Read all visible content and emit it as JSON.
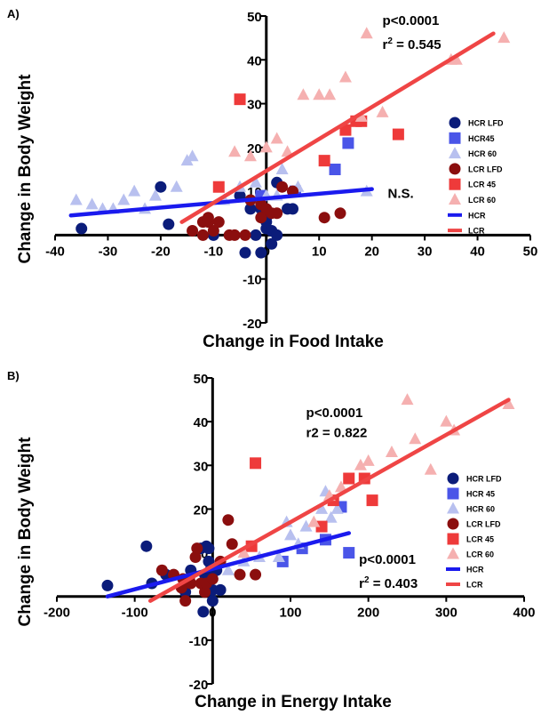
{
  "chart_data": [
    {
      "type": "scatter",
      "panel": "A)",
      "xlabel": "Change in Food  Intake",
      "ylabel": "Change in Body Weight",
      "xlim": [
        -40,
        50
      ],
      "ylim": [
        -20,
        50
      ],
      "x_ticks": [
        "-40",
        "-30",
        "-20",
        "-10",
        "0",
        "10",
        "20",
        "30",
        "40",
        "50"
      ],
      "y_ticks": [
        "-20",
        "-10",
        "0",
        "10",
        "20",
        "30",
        "40",
        "50"
      ],
      "annotations": [
        {
          "text": "p<0.0001",
          "x": 22,
          "y": 48
        },
        {
          "text": "r",
          "sup": "2",
          "rest": " = 0.545",
          "x": 22,
          "y": 42.5
        },
        {
          "text": "N.S.",
          "x": 23,
          "y": 8.5
        }
      ],
      "series": [
        {
          "name": "HCR LFD",
          "marker": "circle",
          "color": "#0b1c7a",
          "points": [
            [
              -35,
              1.5
            ],
            [
              -20,
              11
            ],
            [
              -18.5,
              2.5
            ],
            [
              -10,
              0
            ],
            [
              -5,
              9
            ],
            [
              -3,
              6
            ],
            [
              -2,
              0
            ],
            [
              -1,
              6
            ],
            [
              0,
              3
            ],
            [
              0,
              1.5
            ],
            [
              0,
              4
            ],
            [
              1,
              -2
            ],
            [
              1,
              1
            ],
            [
              2,
              12
            ],
            [
              2,
              0
            ],
            [
              4,
              6
            ],
            [
              5,
              6
            ],
            [
              -1,
              -4
            ],
            [
              -4,
              -4
            ]
          ]
        },
        {
          "name": "HCR45",
          "marker": "square",
          "color": "#4a55e8",
          "points": [
            [
              -1,
              9
            ],
            [
              5.5,
              10
            ],
            [
              13,
              15
            ],
            [
              15.5,
              21
            ]
          ]
        },
        {
          "name": "HCR 60",
          "marker": "triangle",
          "color": "#b8c0ef",
          "points": [
            [
              -36,
              8
            ],
            [
              -33,
              7
            ],
            [
              -31,
              6
            ],
            [
              -29,
              6
            ],
            [
              -27,
              8
            ],
            [
              -25,
              10
            ],
            [
              -23,
              6
            ],
            [
              -21,
              9
            ],
            [
              -17,
              11
            ],
            [
              -15,
              17
            ],
            [
              -14,
              18
            ],
            [
              -8,
              8
            ],
            [
              -5,
              11
            ],
            [
              -2,
              12
            ],
            [
              0,
              9
            ],
            [
              2,
              9
            ],
            [
              3,
              15
            ],
            [
              6,
              11
            ],
            [
              19,
              10
            ]
          ]
        },
        {
          "name": "LCR LFD",
          "marker": "circle",
          "color": "#8b0e0e",
          "points": [
            [
              -14,
              1
            ],
            [
              -12,
              3
            ],
            [
              -12,
              0
            ],
            [
              -11,
              3
            ],
            [
              -10,
              1
            ],
            [
              -9,
              3
            ],
            [
              -7,
              0
            ],
            [
              -6,
              0
            ],
            [
              -4,
              0
            ],
            [
              -3,
              8
            ],
            [
              -1,
              4
            ],
            [
              -1,
              7
            ],
            [
              0,
              6
            ],
            [
              1,
              5
            ],
            [
              2,
              5
            ],
            [
              3,
              11
            ],
            [
              5,
              10
            ],
            [
              11,
              4
            ],
            [
              14,
              5
            ],
            [
              -11,
              4
            ]
          ]
        },
        {
          "name": "LCR 45",
          "marker": "square",
          "color": "#ee3a3a",
          "points": [
            [
              -9,
              11
            ],
            [
              -5,
              31
            ],
            [
              11,
              17
            ],
            [
              15,
              24
            ],
            [
              17,
              26
            ],
            [
              18,
              26
            ],
            [
              25,
              23
            ]
          ]
        },
        {
          "name": "LCR 60",
          "marker": "triangle",
          "color": "#f5b0b0",
          "points": [
            [
              -6,
              19
            ],
            [
              -3,
              18
            ],
            [
              0,
              20
            ],
            [
              2,
              22
            ],
            [
              4,
              19
            ],
            [
              7,
              32
            ],
            [
              10,
              32
            ],
            [
              12,
              32
            ],
            [
              15,
              36
            ],
            [
              18,
              27
            ],
            [
              22,
              28
            ],
            [
              35,
              40
            ],
            [
              36,
              40
            ],
            [
              45,
              45
            ],
            [
              19,
              46
            ]
          ]
        }
      ],
      "fit_lines": [
        {
          "name": "HCR",
          "color": "#1a1aee",
          "x": [
            -37,
            20
          ],
          "y": [
            4.5,
            10.5
          ]
        },
        {
          "name": "LCR",
          "color": "#ef4545",
          "x": [
            -16,
            43
          ],
          "y": [
            3,
            46
          ]
        }
      ],
      "legend": {
        "position": "right"
      }
    },
    {
      "type": "scatter",
      "panel": "B)",
      "xlabel": "Change in Energy Intake",
      "ylabel": "Change in Body Weight",
      "xlim": [
        -200,
        400
      ],
      "ylim": [
        -20,
        50
      ],
      "x_ticks": [
        "-200",
        "-100",
        "0",
        "100",
        "200",
        "300",
        "400"
      ],
      "y_ticks": [
        "-20",
        "-10",
        "0",
        "10",
        "20",
        "30",
        "40",
        "50"
      ],
      "annotations": [
        {
          "text": "p<0.0001",
          "x": 120,
          "y": 41
        },
        {
          "text": "r2 = 0.822",
          "x": 120,
          "y": 36.5
        },
        {
          "text": "p<0.0001",
          "x": 188,
          "y": 7.5
        },
        {
          "text": "r",
          "sup": "2",
          "rest": " = 0.403",
          "x": 188,
          "y": 2
        }
      ],
      "series": [
        {
          "name": "HCR LFD",
          "marker": "circle",
          "color": "#0b1c7a",
          "points": [
            [
              -135,
              2.5
            ],
            [
              -85,
              11.5
            ],
            [
              -78,
              3
            ],
            [
              -60,
              5
            ],
            [
              -35,
              1
            ],
            [
              -28,
              6
            ],
            [
              -15,
              11
            ],
            [
              -12,
              -3.5
            ],
            [
              -10,
              5
            ],
            [
              -8,
              11.5
            ],
            [
              -5,
              8
            ],
            [
              -3,
              1.5
            ],
            [
              -3,
              6
            ],
            [
              0,
              1.5
            ],
            [
              0,
              -1
            ],
            [
              5,
              6
            ],
            [
              -5,
              11
            ],
            [
              10,
              1.5
            ]
          ]
        },
        {
          "name": "HCR 45",
          "marker": "square",
          "color": "#4a55e8",
          "points": [
            [
              90,
              8
            ],
            [
              115,
              11
            ],
            [
              145,
              13
            ],
            [
              165,
              20.5
            ],
            [
              175,
              10
            ]
          ]
        },
        {
          "name": "HCR 60",
          "marker": "triangle",
          "color": "#b8c0ef",
          "points": [
            [
              20,
              6
            ],
            [
              40,
              8
            ],
            [
              60,
              9
            ],
            [
              85,
              9
            ],
            [
              95,
              17
            ],
            [
              100,
              14
            ],
            [
              110,
              12
            ],
            [
              120,
              16
            ],
            [
              140,
              20
            ],
            [
              145,
              24
            ],
            [
              152,
              18
            ],
            [
              160,
              20
            ]
          ]
        },
        {
          "name": "LCR LFD",
          "marker": "circle",
          "color": "#8b0e0e",
          "points": [
            [
              -65,
              6
            ],
            [
              -50,
              5
            ],
            [
              -40,
              2
            ],
            [
              -38,
              4
            ],
            [
              -30,
              4
            ],
            [
              -28,
              3
            ],
            [
              -22,
              9
            ],
            [
              -20,
              11
            ],
            [
              -15,
              3
            ],
            [
              -10,
              1
            ],
            [
              -8,
              3
            ],
            [
              0,
              4
            ],
            [
              10,
              8
            ],
            [
              20,
              17.5
            ],
            [
              25,
              12
            ],
            [
              35,
              5
            ],
            [
              55,
              5
            ],
            [
              -35,
              -1
            ]
          ]
        },
        {
          "name": "LCR 45",
          "marker": "square",
          "color": "#ee3a3a",
          "points": [
            [
              50,
              11.5
            ],
            [
              55,
              30.5
            ],
            [
              140,
              16
            ],
            [
              155,
              22
            ],
            [
              175,
              27
            ],
            [
              195,
              27
            ],
            [
              205,
              22
            ]
          ]
        },
        {
          "name": "LCR 60",
          "marker": "triangle",
          "color": "#f5b0b0",
          "points": [
            [
              40,
              10
            ],
            [
              130,
              17
            ],
            [
              150,
              23
            ],
            [
              165,
              25
            ],
            [
              190,
              30
            ],
            [
              200,
              31
            ],
            [
              230,
              33
            ],
            [
              250,
              45
            ],
            [
              260,
              36
            ],
            [
              280,
              29
            ],
            [
              300,
              40
            ],
            [
              310,
              38
            ],
            [
              380,
              44
            ]
          ]
        }
      ],
      "fit_lines": [
        {
          "name": "HCR",
          "color": "#1a1aee",
          "x": [
            -135,
            175
          ],
          "y": [
            0,
            14.5
          ]
        },
        {
          "name": "LCR",
          "color": "#ef4545",
          "x": [
            -80,
            380
          ],
          "y": [
            -1,
            45
          ]
        }
      ],
      "legend": {
        "position": "right"
      }
    }
  ]
}
